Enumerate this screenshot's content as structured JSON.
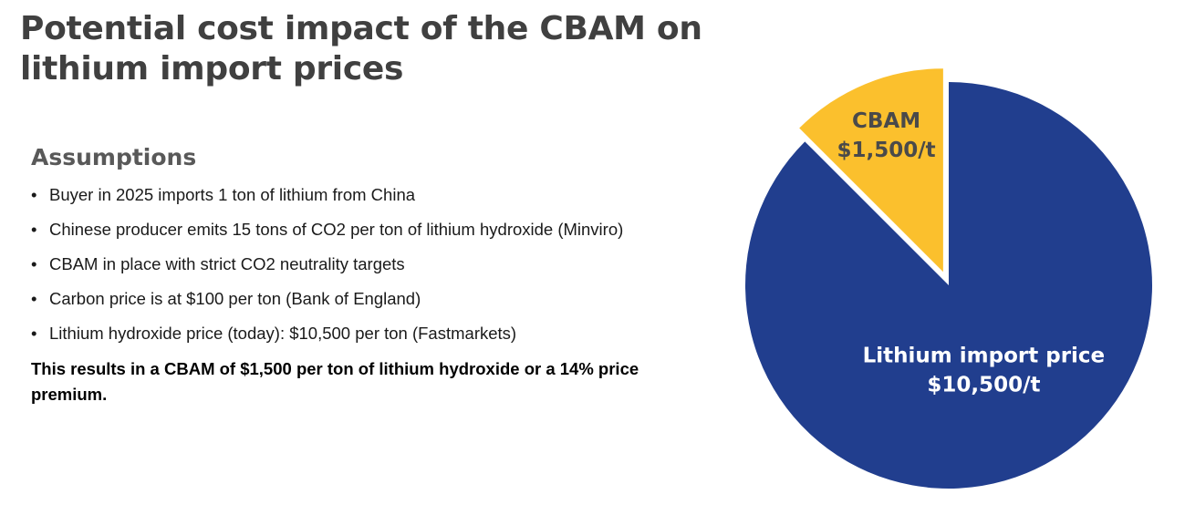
{
  "title": "Potential cost impact of the CBAM on lithium import prices",
  "assumptions": {
    "heading": "Assumptions",
    "bullets": [
      "Buyer in 2025 imports 1 ton of lithium from China",
      "Chinese producer emits 15 tons of CO2 per ton of lithium hydroxide (Minviro)",
      "CBAM in place with strict CO2 neutrality targets",
      "Carbon price is at $100 per ton (Bank of England)",
      "Lithium hydroxide price (today): $10,500 per ton (Fastmarkets)"
    ],
    "conclusion": "This results in a CBAM of $1,500 per ton of lithium hydroxide or a 14% price premium."
  },
  "chart_data": {
    "type": "pie",
    "unit": "$/t",
    "slices": [
      {
        "label_lines": [
          "CBAM",
          "$1,500/t"
        ],
        "value": 1500,
        "color": "#FBC02D",
        "label_color": "#4a4a4a",
        "exploded": true
      },
      {
        "label_lines": [
          "Lithium import price",
          "$10,500/t"
        ],
        "value": 10500,
        "color": "#213E8E",
        "label_color": "#ffffff",
        "exploded": false
      }
    ]
  }
}
